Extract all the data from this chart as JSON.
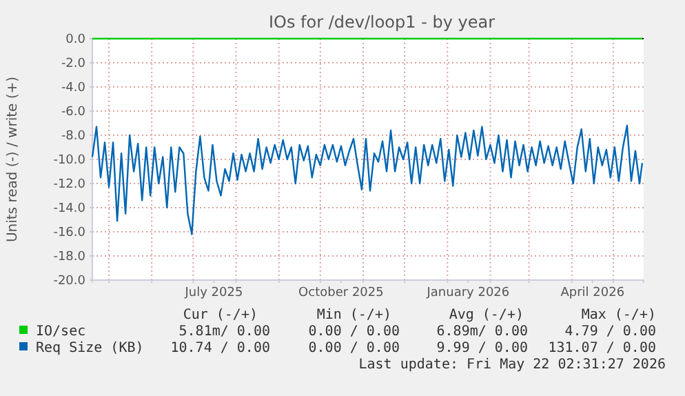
{
  "chart_data": {
    "type": "line",
    "title": "IOs for /dev/loop1 - by year",
    "ylabel": "Units read (-) / write (+)",
    "x": [
      "2025-04-19",
      "2025-04-22",
      "2025-04-25",
      "2025-04-28",
      "2025-05-01",
      "2025-05-04",
      "2025-05-07",
      "2025-05-10",
      "2025-05-13",
      "2025-05-16",
      "2025-05-19",
      "2025-05-22",
      "2025-05-25",
      "2025-05-28",
      "2025-05-31",
      "2025-06-03",
      "2025-06-06",
      "2025-06-09",
      "2025-06-12",
      "2025-06-15",
      "2025-06-18",
      "2025-06-21",
      "2025-06-24",
      "2025-06-27",
      "2025-06-30",
      "2025-07-03",
      "2025-07-06",
      "2025-07-09",
      "2025-07-12",
      "2025-07-15",
      "2025-07-18",
      "2025-07-21",
      "2025-07-24",
      "2025-07-27",
      "2025-07-30",
      "2025-08-02",
      "2025-08-05",
      "2025-08-08",
      "2025-08-11",
      "2025-08-14",
      "2025-08-17",
      "2025-08-20",
      "2025-08-23",
      "2025-08-26",
      "2025-08-29",
      "2025-09-01",
      "2025-09-04",
      "2025-09-07",
      "2025-09-10",
      "2025-09-13",
      "2025-09-16",
      "2025-09-19",
      "2025-09-22",
      "2025-09-25",
      "2025-09-28",
      "2025-10-01",
      "2025-10-04",
      "2025-10-07",
      "2025-10-10",
      "2025-10-13",
      "2025-10-16",
      "2025-10-19",
      "2025-10-22",
      "2025-10-25",
      "2025-10-28",
      "2025-10-31",
      "2025-11-03",
      "2025-11-06",
      "2025-11-09",
      "2025-11-12",
      "2025-11-15",
      "2025-11-18",
      "2025-11-21",
      "2025-11-24",
      "2025-11-27",
      "2025-11-30",
      "2025-12-03",
      "2025-12-06",
      "2025-12-09",
      "2025-12-12",
      "2025-12-15",
      "2025-12-18",
      "2025-12-21",
      "2025-12-24",
      "2025-12-27",
      "2025-12-30",
      "2026-01-02",
      "2026-01-05",
      "2026-01-08",
      "2026-01-11",
      "2026-01-14",
      "2026-01-17",
      "2026-01-20",
      "2026-01-23",
      "2026-01-26",
      "2026-01-29",
      "2026-02-01",
      "2026-02-04",
      "2026-02-07",
      "2026-02-10",
      "2026-02-13",
      "2026-02-16",
      "2026-02-19",
      "2026-02-22",
      "2026-02-25",
      "2026-02-28",
      "2026-03-03",
      "2026-03-06",
      "2026-03-09",
      "2026-03-12",
      "2026-03-15",
      "2026-03-18",
      "2026-03-21",
      "2026-03-24",
      "2026-03-27",
      "2026-03-30",
      "2026-04-02",
      "2026-04-05",
      "2026-04-08",
      "2026-04-11",
      "2026-04-14",
      "2026-04-17",
      "2026-04-20",
      "2026-04-23",
      "2026-04-26",
      "2026-04-29",
      "2026-05-02",
      "2026-05-05",
      "2026-05-08",
      "2026-05-11",
      "2026-05-14",
      "2026-05-17",
      "2026-05-20",
      "2026-05-22"
    ],
    "series": [
      {
        "name": "IO/sec",
        "color": "#00cc00",
        "x": [
          "2025-04-19",
          "2026-05-22"
        ],
        "values": [
          0,
          0
        ]
      },
      {
        "name": "Req Size (KB)",
        "color": "#0066b3",
        "values": [
          -9.8,
          -7.3,
          -11.5,
          -8.6,
          -12.3,
          -8.6,
          -15.1,
          -9.5,
          -14.5,
          -8.0,
          -11.0,
          -8.7,
          -13.4,
          -9.0,
          -13.0,
          -9.0,
          -12.0,
          -9.8,
          -14.0,
          -9.0,
          -12.7,
          -9.0,
          -9.5,
          -14.5,
          -16.2,
          -11.0,
          -8.1,
          -11.5,
          -12.6,
          -8.8,
          -11.8,
          -13.0,
          -10.8,
          -11.8,
          -9.5,
          -11.7,
          -9.6,
          -11.0,
          -9.5,
          -11.0,
          -8.3,
          -10.8,
          -9.0,
          -10.3,
          -8.8,
          -10.0,
          -8.4,
          -10.0,
          -9.0,
          -12.0,
          -8.8,
          -10.1,
          -8.9,
          -11.5,
          -9.6,
          -10.5,
          -8.8,
          -10.0,
          -8.8,
          -10.2,
          -8.9,
          -10.5,
          -9.3,
          -8.3,
          -10.5,
          -12.5,
          -8.3,
          -12.6,
          -9.5,
          -10.2,
          -8.5,
          -11.0,
          -7.6,
          -11.0,
          -9.0,
          -10.0,
          -8.6,
          -12.0,
          -9.0,
          -12.0,
          -8.8,
          -10.5,
          -8.8,
          -10.3,
          -8.3,
          -11.8,
          -9.2,
          -12.2,
          -8.0,
          -9.8,
          -7.8,
          -10.0,
          -7.6,
          -9.7,
          -7.3,
          -10.0,
          -8.8,
          -10.3,
          -8.0,
          -11.0,
          -8.4,
          -11.5,
          -8.5,
          -10.5,
          -8.8,
          -11.0,
          -9.0,
          -10.5,
          -8.5,
          -10.3,
          -8.9,
          -10.5,
          -9.0,
          -10.8,
          -8.5,
          -10.3,
          -12.0,
          -9.0,
          -7.5,
          -11.0,
          -8.3,
          -12.0,
          -9.0,
          -10.5,
          -9.2,
          -11.5,
          -9.0,
          -11.8,
          -9.0,
          -7.2,
          -11.8,
          -9.3,
          -12.0,
          -10.3
        ]
      }
    ],
    "xlim": [
      "2025-04-19",
      "2026-05-23"
    ],
    "xticks": [
      {
        "value": "2025-05-01",
        "label": null
      },
      {
        "value": "2025-06-01",
        "label": null
      },
      {
        "value": "2025-07-01",
        "label": null
      },
      {
        "value": "2025-08-01",
        "label": null
      },
      {
        "value": "2025-09-01",
        "label": null
      },
      {
        "value": "2025-10-01",
        "label": null
      },
      {
        "value": "2025-11-01",
        "label": null
      },
      {
        "value": "2025-12-01",
        "label": null
      },
      {
        "value": "2026-01-01",
        "label": null
      },
      {
        "value": "2026-02-01",
        "label": null
      },
      {
        "value": "2026-03-01",
        "label": null
      },
      {
        "value": "2026-04-01",
        "label": null
      },
      {
        "value": "2026-05-01",
        "label": null
      },
      {
        "value": "2025-07-16",
        "label": "July 2025"
      },
      {
        "value": "2025-10-16",
        "label": "October 2025"
      },
      {
        "value": "2026-01-16",
        "label": "January 2026"
      },
      {
        "value": "2026-04-16",
        "label": "April 2026"
      }
    ],
    "ylim": [
      -20,
      0
    ],
    "yticks": [
      {
        "value": 0,
        "label": "0.0"
      },
      {
        "value": -2,
        "label": "-2.0"
      },
      {
        "value": -4,
        "label": "-4.0"
      },
      {
        "value": -6,
        "label": "-6.0"
      },
      {
        "value": -8,
        "label": "-8.0"
      },
      {
        "value": -10,
        "label": "-10.0"
      },
      {
        "value": -12,
        "label": "-12.0"
      },
      {
        "value": -14,
        "label": "-14.0"
      },
      {
        "value": -16,
        "label": "-16.0"
      },
      {
        "value": -18,
        "label": "-18.0"
      },
      {
        "value": -20,
        "label": "-20.0"
      }
    ],
    "ref_lines": [
      {
        "axis": "y",
        "value": 0,
        "color": "#000000"
      }
    ],
    "grid": true,
    "legend": "bottom left",
    "line_style": "solid",
    "marker": "none",
    "annotations": [
      "Cur (-/+)",
      "Min (-/+)",
      "Avg (-/+)",
      "Max (-/+)",
      "5.81m/ 0.00",
      "0.00 / 0.00",
      "6.89m/ 0.00",
      "4.79 / 0.00",
      "10.74 / 0.00",
      "0.00 / 0.00",
      "9.99 / 0.00",
      "131.07 / 0.00",
      "Last update: Fri May 22 02:31:27 2026"
    ]
  }
}
